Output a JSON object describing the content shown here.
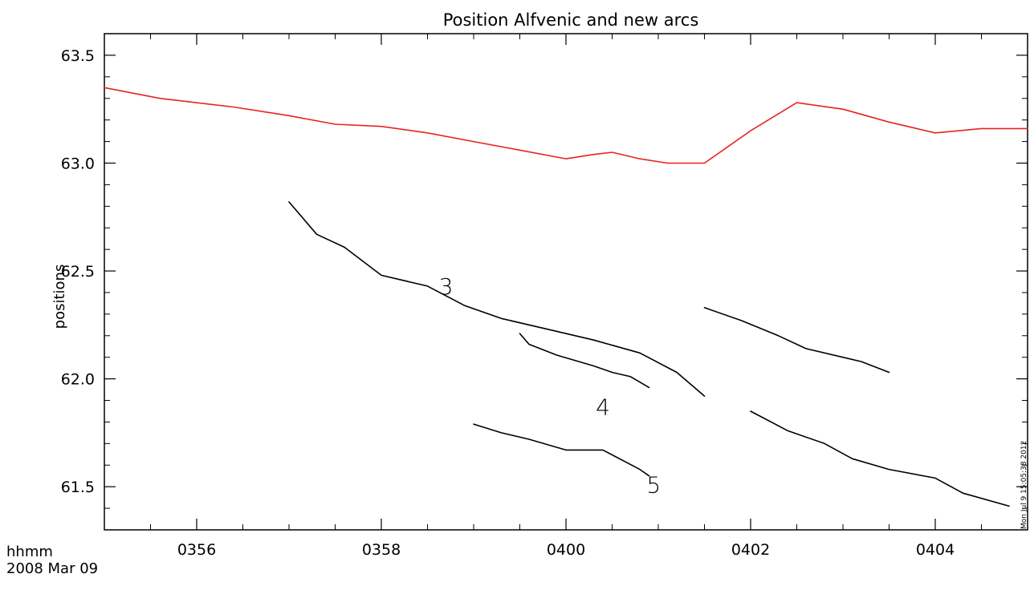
{
  "chart_data": {
    "type": "line",
    "title": "Position Alfvenic and new arcs",
    "xlabel": "hhmm",
    "xlabel_sub": "2008 Mar 09",
    "ylabel": "positions",
    "timestamp": "Mon Jul  9 15:05:38 2012",
    "x_unit": "minutes after 03:00 UT",
    "xlim": [
      55,
      65
    ],
    "ylim": [
      61.3,
      63.6
    ],
    "x_ticks": [
      56,
      58,
      60,
      62,
      64
    ],
    "x_tick_labels": [
      "0356",
      "0358",
      "0400",
      "0402",
      "0404"
    ],
    "y_ticks": [
      61.5,
      62.0,
      62.5,
      63.0,
      63.5
    ],
    "y_tick_labels": [
      "61.5",
      "62.0",
      "62.5",
      "63.0",
      "63.5"
    ],
    "grid": false,
    "series": [
      {
        "color": "#e8231f",
        "x": [
          55.0,
          55.6,
          56.4,
          57.0,
          57.5,
          58.0,
          58.5,
          59.0,
          59.5,
          60.0,
          60.3,
          60.5,
          60.8,
          61.1,
          61.5,
          61.8,
          62.0,
          62.5,
          63.0,
          63.5,
          64.0,
          64.5,
          65.0
        ],
        "y": [
          63.35,
          63.3,
          63.26,
          63.22,
          63.18,
          63.17,
          63.14,
          63.1,
          63.06,
          63.02,
          63.04,
          63.05,
          63.02,
          63.0,
          63.0,
          63.09,
          63.15,
          63.28,
          63.25,
          63.19,
          63.14,
          63.16,
          63.16
        ]
      },
      {
        "color": "#000000",
        "label": "3",
        "x": [
          57.0,
          57.3,
          57.6,
          58.0,
          58.5,
          58.9,
          59.3,
          59.8,
          60.3,
          60.8,
          61.2,
          61.5
        ],
        "y": [
          62.82,
          62.67,
          62.61,
          62.48,
          62.43,
          62.34,
          62.28,
          62.23,
          62.18,
          62.12,
          62.03,
          61.92
        ]
      },
      {
        "color": "#000000",
        "x": [
          62.0,
          62.4,
          62.8,
          63.1,
          63.5,
          64.0,
          64.3,
          64.8
        ],
        "y": [
          61.85,
          61.76,
          61.7,
          61.63,
          61.58,
          61.54,
          61.47,
          61.41
        ]
      },
      {
        "color": "#000000",
        "label": "4",
        "x": [
          59.5,
          59.6,
          59.9,
          60.3,
          60.5,
          60.7,
          60.9
        ],
        "y": [
          62.21,
          62.16,
          62.11,
          62.06,
          62.03,
          62.01,
          61.96
        ]
      },
      {
        "color": "#000000",
        "x": [
          61.5,
          61.9,
          62.3,
          62.6,
          63.0,
          63.2,
          63.5
        ],
        "y": [
          62.33,
          62.27,
          62.2,
          62.14,
          62.1,
          62.08,
          62.03
        ]
      },
      {
        "color": "#000000",
        "label": "5",
        "x": [
          59.0,
          59.3,
          59.6,
          60.0,
          60.4,
          60.8,
          60.9
        ],
        "y": [
          61.79,
          61.75,
          61.72,
          61.67,
          61.67,
          61.58,
          61.55
        ]
      }
    ],
    "annotations": [
      {
        "text": "3",
        "x": 58.7,
        "y": 62.43
      },
      {
        "text": "4",
        "x": 60.4,
        "y": 61.87
      },
      {
        "text": "5",
        "x": 60.95,
        "y": 61.51
      }
    ]
  }
}
